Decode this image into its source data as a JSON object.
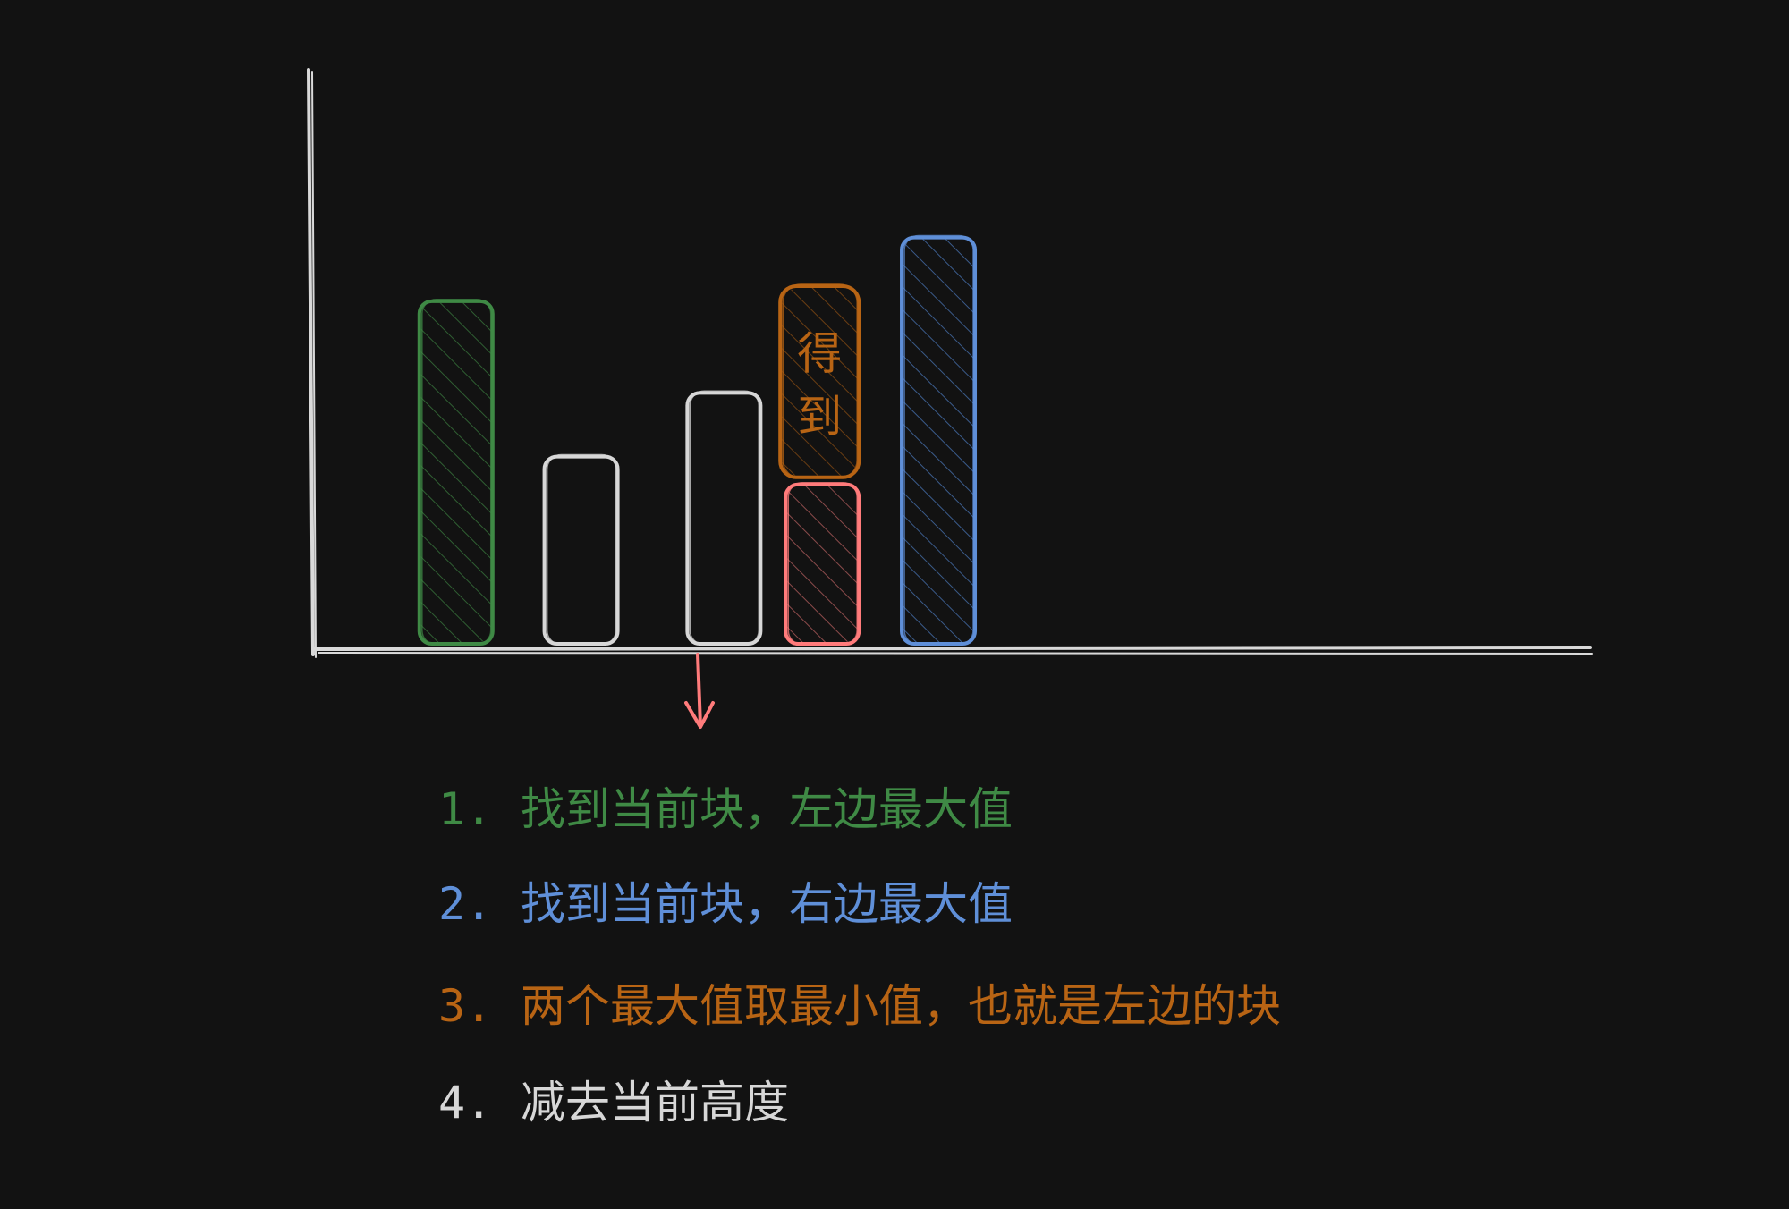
{
  "colors": {
    "background": "#121212",
    "axis": "#d9d9d9",
    "green": "#3f8a45",
    "white": "#d7d7d7",
    "orange": "#b86414",
    "red": "#ff7b7b",
    "blue": "#5f8fd8"
  },
  "chart_data": {
    "type": "bar",
    "bars": [
      {
        "height": 8.6,
        "color": "green",
        "hatched": true
      },
      {
        "height": 4.7,
        "color": "white",
        "hatched": false
      },
      {
        "height": 6.3,
        "color": "white",
        "hatched": false
      },
      {
        "height": 4.0,
        "color": "red",
        "hatched": true,
        "stacked_on_top": {
          "height": 4.8,
          "color": "orange",
          "label": "得到"
        }
      },
      {
        "height": 10.2,
        "color": "blue",
        "hatched": true
      }
    ],
    "ylim": [
      0,
      14.5
    ],
    "xlim": [
      0,
      14.3
    ],
    "arrow": {
      "from_bar": 4,
      "direction": "down",
      "color": "red"
    }
  },
  "steps": [
    {
      "number": "1.",
      "text": "找到当前块，左边最大值",
      "color": "#3f8a45"
    },
    {
      "number": "2.",
      "text": "找到当前块，右边最大值",
      "color": "#5f8fd8"
    },
    {
      "number": "3.",
      "text": "两个最大值取最小值，也就是左边的块",
      "color": "#b86414"
    },
    {
      "number": "4.",
      "text": "减去当前高度",
      "color": "#d7d7d7"
    }
  ]
}
